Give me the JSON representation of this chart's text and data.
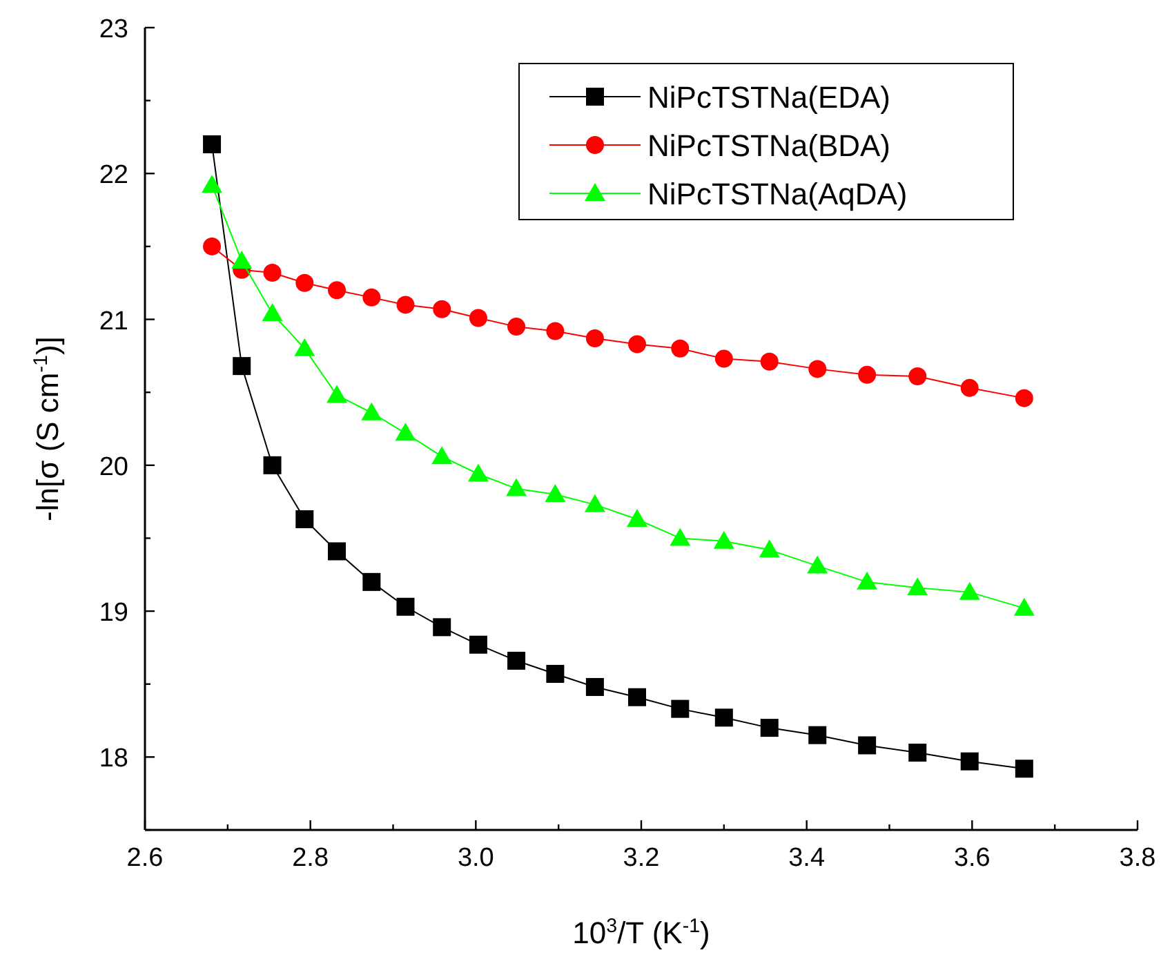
{
  "chart_data": {
    "type": "line",
    "xlabel": "10$^{3}$/T  (K$^{-1}$)",
    "ylabel": "-ln[σ (S cm$^{-1}$)]",
    "x": [
      2.681,
      2.717,
      2.754,
      2.793,
      2.832,
      2.874,
      2.915,
      2.959,
      3.003,
      3.049,
      3.096,
      3.144,
      3.195,
      3.247,
      3.3,
      3.355,
      3.413,
      3.473,
      3.534,
      3.597,
      3.663
    ],
    "series": [
      {
        "name": "NiPcTSTNa(EDA)",
        "color": "#000000",
        "marker": "square",
        "values": [
          22.2,
          20.68,
          20.0,
          19.63,
          19.41,
          19.2,
          19.03,
          18.89,
          18.77,
          18.66,
          18.57,
          18.48,
          18.41,
          18.33,
          18.27,
          18.2,
          18.15,
          18.08,
          18.03,
          17.97,
          17.92
        ]
      },
      {
        "name": "NiPcTSTNa(BDA)",
        "color": "#ff0000",
        "marker": "circle",
        "values": [
          21.5,
          21.34,
          21.32,
          21.25,
          21.2,
          21.15,
          21.1,
          21.07,
          21.01,
          20.95,
          20.92,
          20.87,
          20.83,
          20.8,
          20.73,
          20.71,
          20.66,
          20.62,
          20.61,
          20.53,
          20.46
        ]
      },
      {
        "name": "NiPcTSTNa(AqDA)",
        "color": "#00ff00",
        "marker": "triangle",
        "values": [
          21.92,
          21.4,
          21.04,
          20.8,
          20.48,
          20.36,
          20.22,
          20.06,
          19.94,
          19.84,
          19.8,
          19.73,
          19.63,
          19.5,
          19.48,
          19.42,
          19.31,
          19.2,
          19.16,
          19.13,
          19.02
        ]
      }
    ],
    "xlim": [
      2.6,
      3.8
    ],
    "xticks": [
      {
        "value": 2.6,
        "label": "2.6"
      },
      {
        "value": 2.7,
        "label": null
      },
      {
        "value": 2.8,
        "label": "2.8"
      },
      {
        "value": 2.9,
        "label": null
      },
      {
        "value": 3.0,
        "label": "3.0"
      },
      {
        "value": 3.1,
        "label": null
      },
      {
        "value": 3.2,
        "label": "3.2"
      },
      {
        "value": 3.3,
        "label": null
      },
      {
        "value": 3.4,
        "label": "3.4"
      },
      {
        "value": 3.5,
        "label": null
      },
      {
        "value": 3.6,
        "label": "3.6"
      },
      {
        "value": 3.7,
        "label": null
      },
      {
        "value": 3.8,
        "label": "3.8"
      }
    ],
    "ylim": [
      17.5,
      23
    ],
    "yticks": [
      {
        "value": 17.5,
        "label": null
      },
      18,
      {
        "value": 18.5,
        "label": null
      },
      19,
      {
        "value": 19.5,
        "label": null
      },
      20,
      {
        "value": 20.5,
        "label": null
      },
      21,
      {
        "value": 21.5,
        "label": null
      },
      22,
      {
        "value": 22.5,
        "label": null
      },
      23
    ],
    "legend": "top right",
    "grid": false,
    "line_style": "solid"
  }
}
